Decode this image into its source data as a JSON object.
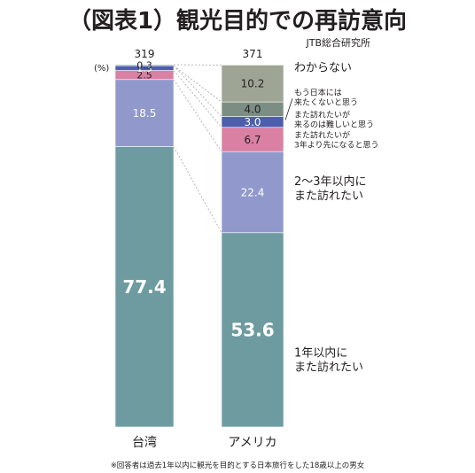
{
  "chart_data": {
    "type": "bar",
    "stacked": true,
    "normalized_percent": true,
    "title": "（図表1）観光目的での再訪意向",
    "source": "JTB総合研究所",
    "unit_label": "(%)",
    "footnote": "※回答者は過去1年以内に観光を目的とする日本旅行をした18歳以上の男女",
    "categories": [
      "台湾",
      "アメリカ"
    ],
    "sample_sizes": [
      "319",
      "371"
    ],
    "ylim": [
      0,
      100
    ],
    "series": [
      {
        "name": "1年以内に また訪れたい",
        "label_lines": [
          "1年以内に",
          "また訪れたい"
        ],
        "color": "#6d9ba0",
        "values": [
          77.4,
          53.6
        ],
        "labels": [
          "77.4",
          "53.6"
        ],
        "text_color": "#ffffff"
      },
      {
        "name": "2～3年以内に また訪れたい",
        "label_lines": [
          "2～3年以内に",
          "また訪れたい"
        ],
        "color": "#9199cc",
        "values": [
          18.5,
          22.4
        ],
        "labels": [
          "18.5",
          "22.4"
        ],
        "text_color": "#ffffff"
      },
      {
        "name": "また訪れたいが 3年より先になると思う",
        "label_lines": [
          "また訪れたいが",
          "3年より先になると思う"
        ],
        "color": "#d980a3",
        "values": [
          2.5,
          6.7
        ],
        "labels": [
          "2.5",
          "6.7"
        ],
        "text_color": "#231f20"
      },
      {
        "name": "また訪れたいが 来るのは難しいと思う",
        "label_lines": [
          "また訪れたいが",
          "来るのは難しいと思う"
        ],
        "color": "#4c5eac",
        "values": [
          1.3,
          3.0
        ],
        "labels": [
          "1.3",
          "3.0"
        ],
        "text_color": "#ffffff"
      },
      {
        "name": "もう日本には 来たくないと思う",
        "label_lines": [
          "もう日本には",
          "来たくないと思う"
        ],
        "color": "#7c8d83",
        "values": [
          0.0,
          4.0
        ],
        "labels": [
          "0.0",
          "4.0"
        ],
        "text_color": "#231f20"
      },
      {
        "name": "わからない",
        "label_lines": [
          "わからない"
        ],
        "color": "#9fa595",
        "values": [
          0.3,
          10.2
        ],
        "labels": [
          "0.3",
          "10.2"
        ],
        "text_color": "#231f20"
      }
    ]
  }
}
